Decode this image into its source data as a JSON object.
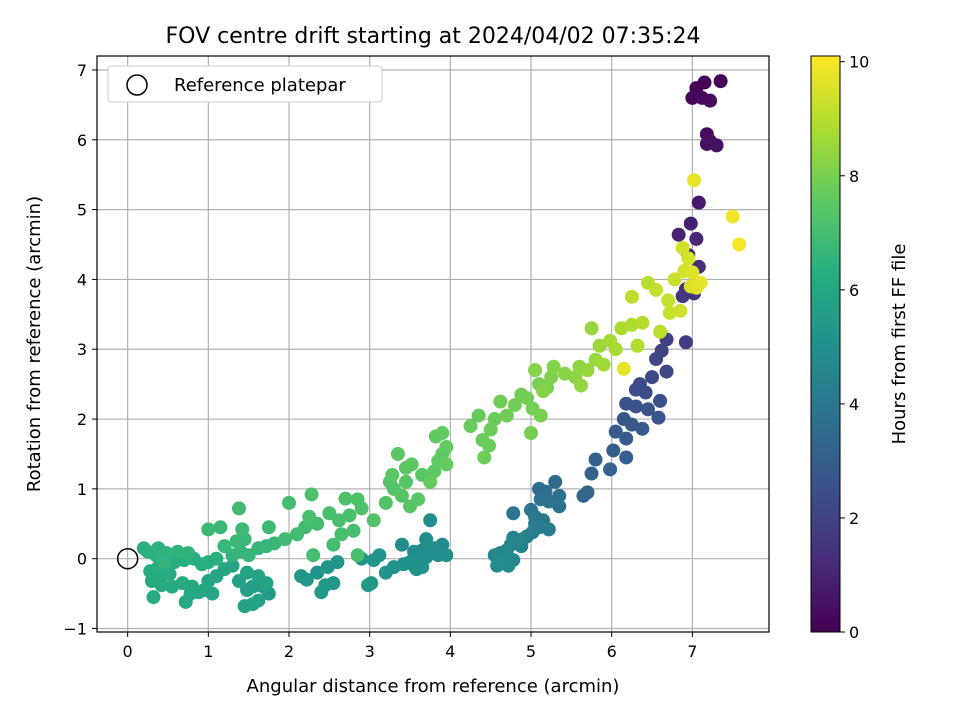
{
  "chart_data": {
    "type": "scatter",
    "title": "FOV centre drift starting at 2024/04/02 07:35:24",
    "xlabel": "Angular distance from reference (arcmin)",
    "ylabel": "Rotation from reference (arcmin)",
    "xlim": [
      -0.38,
      7.95
    ],
    "ylim": [
      -1.05,
      7.2
    ],
    "xticks": [
      0,
      1,
      2,
      3,
      4,
      5,
      6,
      7
    ],
    "yticks": [
      -1,
      0,
      1,
      2,
      3,
      4,
      5,
      6,
      7
    ],
    "grid": true,
    "legend": {
      "placement": "top-left",
      "entries": [
        "Reference platepar"
      ]
    },
    "reference_point": {
      "x": 0,
      "y": 0
    },
    "colorbar": {
      "label": "Hours from first FF file",
      "range": [
        0,
        10.1
      ],
      "ticks": [
        0,
        2,
        4,
        6,
        8,
        10
      ],
      "colormap": "viridis"
    },
    "points": [
      {
        "x": 7.05,
        "y": 6.74,
        "t": 0.05
      },
      {
        "x": 7.15,
        "y": 6.82,
        "t": 0.1
      },
      {
        "x": 7.35,
        "y": 6.84,
        "t": 0.15
      },
      {
        "x": 7.0,
        "y": 6.6,
        "t": 0.2
      },
      {
        "x": 7.12,
        "y": 6.6,
        "t": 0.25
      },
      {
        "x": 7.22,
        "y": 6.56,
        "t": 0.3
      },
      {
        "x": 7.18,
        "y": 6.08,
        "t": 0.35
      },
      {
        "x": 7.22,
        "y": 5.98,
        "t": 0.4
      },
      {
        "x": 7.3,
        "y": 5.92,
        "t": 0.45
      },
      {
        "x": 7.18,
        "y": 5.94,
        "t": 0.5
      },
      {
        "x": 7.08,
        "y": 5.1,
        "t": 0.7
      },
      {
        "x": 6.98,
        "y": 4.8,
        "t": 0.9
      },
      {
        "x": 6.83,
        "y": 4.64,
        "t": 1.0
      },
      {
        "x": 7.05,
        "y": 4.58,
        "t": 1.1
      },
      {
        "x": 6.95,
        "y": 4.35,
        "t": 1.2
      },
      {
        "x": 7.08,
        "y": 4.18,
        "t": 1.3
      },
      {
        "x": 6.92,
        "y": 3.86,
        "t": 1.4
      },
      {
        "x": 6.88,
        "y": 3.76,
        "t": 1.5
      },
      {
        "x": 7.02,
        "y": 3.8,
        "t": 1.6
      },
      {
        "x": 6.92,
        "y": 3.1,
        "t": 1.8
      },
      {
        "x": 6.68,
        "y": 3.14,
        "t": 1.9
      },
      {
        "x": 6.62,
        "y": 2.98,
        "t": 2.0
      },
      {
        "x": 6.55,
        "y": 2.86,
        "t": 2.1
      },
      {
        "x": 6.68,
        "y": 2.68,
        "t": 2.2
      },
      {
        "x": 6.5,
        "y": 2.6,
        "t": 2.25
      },
      {
        "x": 6.35,
        "y": 2.5,
        "t": 2.3
      },
      {
        "x": 6.3,
        "y": 2.42,
        "t": 2.35
      },
      {
        "x": 6.42,
        "y": 2.38,
        "t": 2.4
      },
      {
        "x": 6.6,
        "y": 2.26,
        "t": 2.45
      },
      {
        "x": 6.18,
        "y": 2.22,
        "t": 2.5
      },
      {
        "x": 6.3,
        "y": 2.18,
        "t": 2.55
      },
      {
        "x": 6.45,
        "y": 2.14,
        "t": 2.6
      },
      {
        "x": 6.58,
        "y": 2.02,
        "t": 2.65
      },
      {
        "x": 6.15,
        "y": 2.0,
        "t": 2.7
      },
      {
        "x": 6.25,
        "y": 1.92,
        "t": 2.75
      },
      {
        "x": 6.38,
        "y": 1.86,
        "t": 2.8
      },
      {
        "x": 6.05,
        "y": 1.82,
        "t": 2.85
      },
      {
        "x": 6.18,
        "y": 1.72,
        "t": 2.9
      },
      {
        "x": 6.02,
        "y": 1.55,
        "t": 3.0
      },
      {
        "x": 6.18,
        "y": 1.45,
        "t": 3.05
      },
      {
        "x": 5.8,
        "y": 1.42,
        "t": 3.1
      },
      {
        "x": 5.98,
        "y": 1.28,
        "t": 3.15
      },
      {
        "x": 5.75,
        "y": 1.22,
        "t": 3.2
      },
      {
        "x": 5.7,
        "y": 0.95,
        "t": 3.3
      },
      {
        "x": 5.65,
        "y": 0.9,
        "t": 3.35
      },
      {
        "x": 5.3,
        "y": 1.1,
        "t": 3.5
      },
      {
        "x": 5.1,
        "y": 1.0,
        "t": 3.6
      },
      {
        "x": 5.18,
        "y": 0.96,
        "t": 3.65
      },
      {
        "x": 5.35,
        "y": 0.9,
        "t": 3.7
      },
      {
        "x": 5.12,
        "y": 0.85,
        "t": 3.75
      },
      {
        "x": 5.22,
        "y": 0.82,
        "t": 3.8
      },
      {
        "x": 5.35,
        "y": 0.75,
        "t": 3.85
      },
      {
        "x": 5.0,
        "y": 0.7,
        "t": 3.9
      },
      {
        "x": 4.78,
        "y": 0.65,
        "t": 3.95
      },
      {
        "x": 5.05,
        "y": 0.6,
        "t": 4.0
      },
      {
        "x": 5.15,
        "y": 0.55,
        "t": 4.05
      },
      {
        "x": 5.05,
        "y": 0.5,
        "t": 4.1
      },
      {
        "x": 5.1,
        "y": 0.45,
        "t": 4.15
      },
      {
        "x": 5.22,
        "y": 0.42,
        "t": 4.2
      },
      {
        "x": 5.02,
        "y": 0.38,
        "t": 4.25
      },
      {
        "x": 4.95,
        "y": 0.32,
        "t": 4.3
      },
      {
        "x": 4.78,
        "y": 0.3,
        "t": 4.35
      },
      {
        "x": 4.9,
        "y": 0.28,
        "t": 4.4
      },
      {
        "x": 4.82,
        "y": 0.25,
        "t": 4.45
      },
      {
        "x": 4.75,
        "y": 0.2,
        "t": 4.5
      },
      {
        "x": 4.88,
        "y": 0.18,
        "t": 4.55
      },
      {
        "x": 4.7,
        "y": 0.12,
        "t": 4.6
      },
      {
        "x": 4.62,
        "y": 0.08,
        "t": 4.65
      },
      {
        "x": 4.55,
        "y": 0.05,
        "t": 4.7
      },
      {
        "x": 4.7,
        "y": 0.02,
        "t": 4.72
      },
      {
        "x": 4.78,
        "y": -0.02,
        "t": 4.74
      },
      {
        "x": 4.62,
        "y": -0.05,
        "t": 4.76
      },
      {
        "x": 4.72,
        "y": -0.1,
        "t": 4.78
      },
      {
        "x": 4.58,
        "y": -0.1,
        "t": 4.8
      },
      {
        "x": 3.9,
        "y": 0.2,
        "t": 4.82
      },
      {
        "x": 3.8,
        "y": 0.15,
        "t": 4.84
      },
      {
        "x": 3.65,
        "y": 0.12,
        "t": 4.86
      },
      {
        "x": 3.55,
        "y": 0.1,
        "t": 4.88
      },
      {
        "x": 3.4,
        "y": 0.2,
        "t": 4.9
      },
      {
        "x": 3.7,
        "y": 0.28,
        "t": 4.92
      },
      {
        "x": 3.75,
        "y": 0.55,
        "t": 4.94
      },
      {
        "x": 3.95,
        "y": 0.05,
        "t": 4.96
      },
      {
        "x": 3.85,
        "y": 0.05,
        "t": 4.98
      },
      {
        "x": 3.7,
        "y": 0.02,
        "t": 5.0
      },
      {
        "x": 3.6,
        "y": -0.02,
        "t": 5.02
      },
      {
        "x": 3.5,
        "y": -0.05,
        "t": 5.04
      },
      {
        "x": 3.42,
        "y": -0.08,
        "t": 5.06
      },
      {
        "x": 3.55,
        "y": -0.1,
        "t": 5.08
      },
      {
        "x": 3.65,
        "y": -0.12,
        "t": 5.1
      },
      {
        "x": 3.58,
        "y": -0.15,
        "t": 5.12
      },
      {
        "x": 3.3,
        "y": -0.12,
        "t": 5.14
      },
      {
        "x": 3.2,
        "y": -0.2,
        "t": 5.16
      },
      {
        "x": 3.12,
        "y": 0.05,
        "t": 5.18
      },
      {
        "x": 3.05,
        "y": -0.02,
        "t": 5.2
      },
      {
        "x": 2.9,
        "y": 0.0,
        "t": 5.22
      },
      {
        "x": 2.6,
        "y": -0.05,
        "t": 5.24
      },
      {
        "x": 2.48,
        "y": -0.12,
        "t": 5.26
      },
      {
        "x": 2.35,
        "y": -0.2,
        "t": 5.28
      },
      {
        "x": 2.22,
        "y": -0.3,
        "t": 5.3
      },
      {
        "x": 2.15,
        "y": -0.25,
        "t": 5.32
      },
      {
        "x": 2.45,
        "y": -0.38,
        "t": 5.34
      },
      {
        "x": 2.55,
        "y": -0.35,
        "t": 5.36
      },
      {
        "x": 2.4,
        "y": -0.48,
        "t": 5.38
      },
      {
        "x": 2.98,
        "y": -0.38,
        "t": 5.4
      },
      {
        "x": 3.02,
        "y": -0.35,
        "t": 5.42
      },
      {
        "x": 1.75,
        "y": -0.5,
        "t": 5.5
      },
      {
        "x": 1.68,
        "y": -0.4,
        "t": 5.55
      },
      {
        "x": 1.55,
        "y": -0.4,
        "t": 5.6
      },
      {
        "x": 1.48,
        "y": -0.45,
        "t": 5.65
      },
      {
        "x": 1.62,
        "y": -0.6,
        "t": 5.7
      },
      {
        "x": 1.55,
        "y": -0.65,
        "t": 5.75
      },
      {
        "x": 1.45,
        "y": -0.68,
        "t": 5.78
      },
      {
        "x": 1.38,
        "y": -0.32,
        "t": 5.8
      },
      {
        "x": 1.72,
        "y": -0.35,
        "t": 5.82
      },
      {
        "x": 1.62,
        "y": -0.25,
        "t": 5.84
      },
      {
        "x": 1.48,
        "y": -0.2,
        "t": 5.86
      },
      {
        "x": 1.3,
        "y": -0.1,
        "t": 5.88
      },
      {
        "x": 1.2,
        "y": -0.15,
        "t": 5.9
      },
      {
        "x": 1.1,
        "y": -0.25,
        "t": 5.92
      },
      {
        "x": 1.0,
        "y": -0.32,
        "t": 5.94
      },
      {
        "x": 0.95,
        "y": -0.45,
        "t": 5.96
      },
      {
        "x": 1.05,
        "y": -0.5,
        "t": 5.98
      },
      {
        "x": 0.88,
        "y": -0.48,
        "t": 6.0
      },
      {
        "x": 0.78,
        "y": -0.5,
        "t": 6.02
      },
      {
        "x": 0.72,
        "y": -0.62,
        "t": 6.04
      },
      {
        "x": 0.8,
        "y": -0.4,
        "t": 6.06
      },
      {
        "x": 0.68,
        "y": -0.35,
        "t": 6.08
      },
      {
        "x": 0.55,
        "y": -0.4,
        "t": 6.1
      },
      {
        "x": 0.42,
        "y": -0.38,
        "t": 6.12
      },
      {
        "x": 0.3,
        "y": -0.32,
        "t": 6.14
      },
      {
        "x": 0.4,
        "y": -0.25,
        "t": 6.16
      },
      {
        "x": 0.52,
        "y": -0.22,
        "t": 6.18
      },
      {
        "x": 0.32,
        "y": -0.55,
        "t": 6.2
      },
      {
        "x": 0.28,
        "y": -0.18,
        "t": 6.22
      },
      {
        "x": 0.38,
        "y": -0.12,
        "t": 6.24
      },
      {
        "x": 0.46,
        "y": -0.08,
        "t": 6.26
      },
      {
        "x": 0.58,
        "y": -0.05,
        "t": 6.28
      },
      {
        "x": 0.7,
        "y": -0.02,
        "t": 6.3
      },
      {
        "x": 0.82,
        "y": 0.0,
        "t": 6.32
      },
      {
        "x": 0.92,
        "y": -0.08,
        "t": 6.34
      },
      {
        "x": 1.0,
        "y": -0.05,
        "t": 6.36
      },
      {
        "x": 1.1,
        "y": 0.0,
        "t": 6.38
      },
      {
        "x": 0.35,
        "y": 0.05,
        "t": 6.4
      },
      {
        "x": 0.25,
        "y": 0.1,
        "t": 6.42
      },
      {
        "x": 0.2,
        "y": 0.15,
        "t": 6.44
      },
      {
        "x": 0.38,
        "y": 0.15,
        "t": 6.46
      },
      {
        "x": 0.48,
        "y": 0.08,
        "t": 6.48
      },
      {
        "x": 0.62,
        "y": 0.1,
        "t": 6.5
      },
      {
        "x": 0.75,
        "y": 0.08,
        "t": 6.52
      },
      {
        "x": 0.45,
        "y": -0.05,
        "t": 6.54
      },
      {
        "x": 1.3,
        "y": 0.05,
        "t": 6.6
      },
      {
        "x": 1.4,
        "y": 0.1,
        "t": 6.62
      },
      {
        "x": 1.5,
        "y": 0.05,
        "t": 6.64
      },
      {
        "x": 1.62,
        "y": 0.15,
        "t": 6.66
      },
      {
        "x": 1.72,
        "y": 0.18,
        "t": 6.68
      },
      {
        "x": 1.82,
        "y": 0.22,
        "t": 6.7
      },
      {
        "x": 1.2,
        "y": 0.18,
        "t": 6.72
      },
      {
        "x": 1.35,
        "y": 0.25,
        "t": 6.74
      },
      {
        "x": 1.45,
        "y": 0.28,
        "t": 6.76
      },
      {
        "x": 1.0,
        "y": 0.42,
        "t": 6.78
      },
      {
        "x": 1.15,
        "y": 0.45,
        "t": 6.8
      },
      {
        "x": 1.42,
        "y": 0.42,
        "t": 6.82
      },
      {
        "x": 1.38,
        "y": 0.72,
        "t": 6.84
      },
      {
        "x": 1.75,
        "y": 0.45,
        "t": 6.86
      },
      {
        "x": 1.95,
        "y": 0.28,
        "t": 6.88
      },
      {
        "x": 2.1,
        "y": 0.35,
        "t": 6.9
      },
      {
        "x": 2.2,
        "y": 0.45,
        "t": 6.92
      },
      {
        "x": 2.35,
        "y": 0.5,
        "t": 6.94
      },
      {
        "x": 2.0,
        "y": 0.8,
        "t": 6.96
      },
      {
        "x": 2.3,
        "y": 0.05,
        "t": 6.98
      },
      {
        "x": 2.55,
        "y": 0.2,
        "t": 7.0
      },
      {
        "x": 2.65,
        "y": 0.35,
        "t": 7.02
      },
      {
        "x": 2.8,
        "y": 0.4,
        "t": 7.04
      },
      {
        "x": 2.85,
        "y": 0.05,
        "t": 7.06
      },
      {
        "x": 2.25,
        "y": 0.6,
        "t": 7.08
      },
      {
        "x": 2.5,
        "y": 0.65,
        "t": 7.1
      },
      {
        "x": 2.62,
        "y": 0.55,
        "t": 7.12
      },
      {
        "x": 2.75,
        "y": 0.62,
        "t": 7.14
      },
      {
        "x": 2.28,
        "y": 0.92,
        "t": 7.16
      },
      {
        "x": 2.7,
        "y": 0.86,
        "t": 7.18
      },
      {
        "x": 2.85,
        "y": 0.85,
        "t": 7.2
      },
      {
        "x": 2.9,
        "y": 0.72,
        "t": 7.22
      },
      {
        "x": 3.05,
        "y": 0.55,
        "t": 7.24
      },
      {
        "x": 3.2,
        "y": 0.8,
        "t": 7.3
      },
      {
        "x": 3.3,
        "y": 1.0,
        "t": 7.32
      },
      {
        "x": 3.25,
        "y": 1.1,
        "t": 7.34
      },
      {
        "x": 3.4,
        "y": 0.9,
        "t": 7.36
      },
      {
        "x": 3.45,
        "y": 1.1,
        "t": 7.38
      },
      {
        "x": 3.5,
        "y": 0.75,
        "t": 7.4
      },
      {
        "x": 3.6,
        "y": 0.85,
        "t": 7.42
      },
      {
        "x": 3.65,
        "y": 1.2,
        "t": 7.44
      },
      {
        "x": 3.28,
        "y": 1.2,
        "t": 7.46
      },
      {
        "x": 3.35,
        "y": 1.5,
        "t": 7.48
      },
      {
        "x": 3.45,
        "y": 1.3,
        "t": 7.5
      },
      {
        "x": 3.52,
        "y": 1.35,
        "t": 7.52
      },
      {
        "x": 3.8,
        "y": 1.25,
        "t": 7.54
      },
      {
        "x": 3.85,
        "y": 1.4,
        "t": 7.56
      },
      {
        "x": 3.9,
        "y": 1.5,
        "t": 7.58
      },
      {
        "x": 3.82,
        "y": 1.75,
        "t": 7.6
      },
      {
        "x": 3.9,
        "y": 1.8,
        "t": 7.62
      },
      {
        "x": 3.95,
        "y": 1.6,
        "t": 7.64
      },
      {
        "x": 3.75,
        "y": 1.1,
        "t": 7.66
      },
      {
        "x": 3.95,
        "y": 1.35,
        "t": 7.68
      },
      {
        "x": 4.25,
        "y": 1.9,
        "t": 7.7
      },
      {
        "x": 4.35,
        "y": 2.05,
        "t": 7.72
      },
      {
        "x": 4.4,
        "y": 1.7,
        "t": 7.74
      },
      {
        "x": 4.48,
        "y": 1.62,
        "t": 7.76
      },
      {
        "x": 4.5,
        "y": 1.85,
        "t": 7.78
      },
      {
        "x": 4.55,
        "y": 2.0,
        "t": 7.8
      },
      {
        "x": 4.42,
        "y": 1.45,
        "t": 7.82
      },
      {
        "x": 4.62,
        "y": 2.25,
        "t": 7.84
      },
      {
        "x": 4.7,
        "y": 2.05,
        "t": 7.86
      },
      {
        "x": 4.8,
        "y": 2.2,
        "t": 7.88
      },
      {
        "x": 4.88,
        "y": 2.35,
        "t": 7.9
      },
      {
        "x": 4.95,
        "y": 2.3,
        "t": 7.92
      },
      {
        "x": 5.02,
        "y": 2.15,
        "t": 7.94
      },
      {
        "x": 5.1,
        "y": 2.5,
        "t": 7.96
      },
      {
        "x": 5.0,
        "y": 1.8,
        "t": 7.98
      },
      {
        "x": 5.12,
        "y": 2.05,
        "t": 8.0
      },
      {
        "x": 5.2,
        "y": 2.45,
        "t": 8.05
      },
      {
        "x": 5.25,
        "y": 2.6,
        "t": 8.1
      },
      {
        "x": 5.28,
        "y": 2.75,
        "t": 8.15
      },
      {
        "x": 5.05,
        "y": 2.7,
        "t": 8.18
      },
      {
        "x": 5.15,
        "y": 2.4,
        "t": 8.2
      },
      {
        "x": 5.42,
        "y": 2.65,
        "t": 8.25
      },
      {
        "x": 5.55,
        "y": 2.6,
        "t": 8.3
      },
      {
        "x": 5.6,
        "y": 2.75,
        "t": 8.35
      },
      {
        "x": 5.62,
        "y": 2.48,
        "t": 8.4
      },
      {
        "x": 5.7,
        "y": 2.7,
        "t": 8.45
      },
      {
        "x": 5.75,
        "y": 3.3,
        "t": 8.5
      },
      {
        "x": 5.8,
        "y": 2.85,
        "t": 8.55
      },
      {
        "x": 5.85,
        "y": 3.05,
        "t": 8.6
      },
      {
        "x": 5.9,
        "y": 2.78,
        "t": 8.65
      },
      {
        "x": 5.98,
        "y": 3.12,
        "t": 8.7
      },
      {
        "x": 6.05,
        "y": 3.0,
        "t": 8.75
      },
      {
        "x": 6.12,
        "y": 3.3,
        "t": 8.8
      },
      {
        "x": 6.25,
        "y": 3.35,
        "t": 8.85
      },
      {
        "x": 6.32,
        "y": 3.05,
        "t": 8.9
      },
      {
        "x": 6.38,
        "y": 3.38,
        "t": 8.95
      },
      {
        "x": 6.45,
        "y": 3.95,
        "t": 9.0
      },
      {
        "x": 6.6,
        "y": 3.25,
        "t": 9.05
      },
      {
        "x": 6.25,
        "y": 3.75,
        "t": 9.1
      },
      {
        "x": 6.55,
        "y": 3.85,
        "t": 9.15
      },
      {
        "x": 6.7,
        "y": 3.7,
        "t": 9.2
      },
      {
        "x": 6.72,
        "y": 3.52,
        "t": 9.25
      },
      {
        "x": 6.78,
        "y": 4.0,
        "t": 9.3
      },
      {
        "x": 6.85,
        "y": 3.55,
        "t": 9.35
      },
      {
        "x": 6.88,
        "y": 4.45,
        "t": 9.4
      },
      {
        "x": 6.9,
        "y": 4.12,
        "t": 9.45
      },
      {
        "x": 6.95,
        "y": 4.3,
        "t": 9.5
      },
      {
        "x": 6.98,
        "y": 3.9,
        "t": 9.55
      },
      {
        "x": 7.0,
        "y": 4.1,
        "t": 9.6
      },
      {
        "x": 7.05,
        "y": 3.88,
        "t": 9.65
      },
      {
        "x": 7.1,
        "y": 3.95,
        "t": 9.7
      },
      {
        "x": 6.15,
        "y": 2.72,
        "t": 9.75
      },
      {
        "x": 7.02,
        "y": 5.42,
        "t": 9.8
      },
      {
        "x": 7.5,
        "y": 4.9,
        "t": 9.9
      },
      {
        "x": 7.58,
        "y": 4.5,
        "t": 10.0
      }
    ]
  }
}
